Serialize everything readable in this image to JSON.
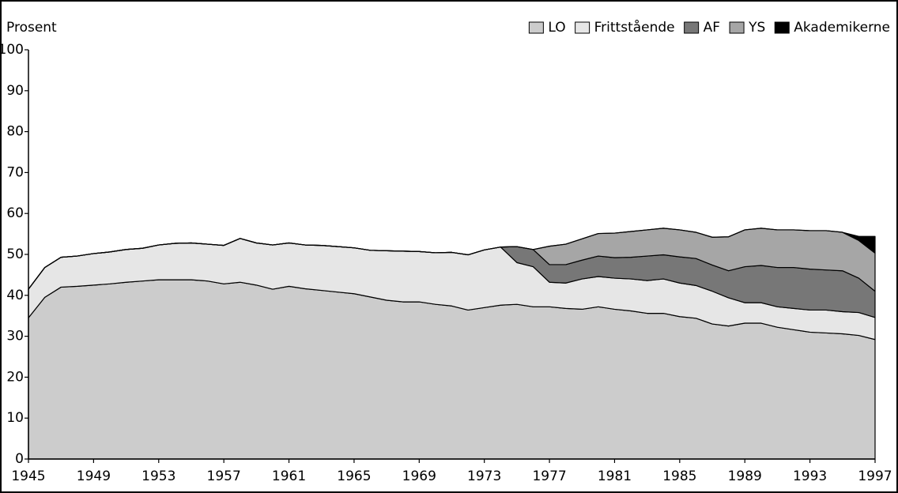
{
  "chart_data": {
    "type": "stacked-area",
    "y_label": "Prosent",
    "x": [
      1945,
      1946,
      1947,
      1948,
      1949,
      1950,
      1951,
      1952,
      1953,
      1954,
      1955,
      1956,
      1957,
      1958,
      1959,
      1960,
      1961,
      1962,
      1963,
      1964,
      1965,
      1966,
      1967,
      1968,
      1969,
      1970,
      1971,
      1972,
      1973,
      1974,
      1975,
      1976,
      1977,
      1978,
      1979,
      1980,
      1981,
      1982,
      1983,
      1984,
      1985,
      1986,
      1987,
      1988,
      1989,
      1990,
      1991,
      1992,
      1993,
      1994,
      1995,
      1996,
      1997
    ],
    "series": [
      {
        "name": "LO",
        "color": "#cccccc",
        "values": [
          34.5,
          39.5,
          42,
          42.2,
          42.5,
          42.8,
          43.2,
          43.5,
          43.8,
          43.8,
          43.8,
          43.5,
          42.8,
          43.2,
          42.5,
          41.5,
          42.2,
          41.6,
          41.2,
          40.8,
          40.4,
          39.6,
          38.8,
          38.4,
          38.4,
          37.8,
          37.4,
          36.4,
          37.0,
          37.6,
          37.8,
          37.2,
          37.2,
          36.8,
          36.6,
          37.2,
          36.6,
          36.2,
          35.6,
          35.6,
          34.8,
          34.4,
          33.0,
          32.5,
          33.2,
          33.2,
          32.2,
          31.6,
          31.0,
          30.8,
          30.6,
          30.2,
          29.2
        ]
      },
      {
        "name": "Frittstående",
        "color": "#e6e6e6",
        "values": [
          7.0,
          7.3,
          7.3,
          7.4,
          7.7,
          7.8,
          8.0,
          8.0,
          8.5,
          8.9,
          9.0,
          9.0,
          9.4,
          10.7,
          10.3,
          10.8,
          10.6,
          10.7,
          11.0,
          11.1,
          11.2,
          11.4,
          12.1,
          12.4,
          12.3,
          12.6,
          13.1,
          13.5,
          14.1,
          14.2,
          10.2,
          9.8,
          6.0,
          6.2,
          7.4,
          7.4,
          7.6,
          7.8,
          8.0,
          8.4,
          8.2,
          8.0,
          8.0,
          6.9,
          5.0,
          5.0,
          5.0,
          5.2,
          5.4,
          5.6,
          5.4,
          5.6,
          5.4
        ]
      },
      {
        "name": "AF",
        "color": "#777777",
        "values": [
          0,
          0,
          0,
          0,
          0,
          0,
          0,
          0,
          0,
          0,
          0,
          0,
          0,
          0,
          0,
          0,
          0,
          0,
          0,
          0,
          0,
          0,
          0,
          0,
          0,
          0,
          0,
          0,
          0,
          0,
          3.9,
          4.2,
          4.3,
          4.5,
          4.6,
          5.0,
          5.0,
          5.3,
          6.0,
          5.9,
          6.4,
          6.6,
          6.4,
          6.6,
          8.8,
          9.1,
          9.6,
          10.0,
          10.0,
          9.8,
          10.0,
          8.4,
          6.4
        ]
      },
      {
        "name": "YS",
        "color": "#a6a6a6",
        "values": [
          0,
          0,
          0,
          0,
          0,
          0,
          0,
          0,
          0,
          0,
          0,
          0,
          0,
          0,
          0,
          0,
          0,
          0,
          0,
          0,
          0,
          0,
          0,
          0,
          0,
          0,
          0,
          0,
          0,
          0,
          0,
          0,
          4.5,
          5.0,
          5.2,
          5.5,
          6.0,
          6.3,
          6.4,
          6.5,
          6.6,
          6.4,
          6.8,
          8.3,
          9.0,
          9.1,
          9.2,
          9.2,
          9.4,
          9.6,
          9.4,
          9.2,
          9.3
        ]
      },
      {
        "name": "Akademikerne",
        "color": "#000000",
        "values": [
          0,
          0,
          0,
          0,
          0,
          0,
          0,
          0,
          0,
          0,
          0,
          0,
          0,
          0,
          0,
          0,
          0,
          0,
          0,
          0,
          0,
          0,
          0,
          0,
          0,
          0,
          0,
          0,
          0,
          0,
          0,
          0,
          0,
          0,
          0,
          0,
          0,
          0,
          0,
          0,
          0,
          0,
          0,
          0,
          0,
          0,
          0,
          0,
          0,
          0,
          0,
          1.0,
          4.1
        ]
      }
    ],
    "xlim": [
      1945,
      1997
    ],
    "xticks": [
      1945,
      1949,
      1953,
      1957,
      1961,
      1965,
      1969,
      1973,
      1977,
      1981,
      1985,
      1989,
      1993,
      1997
    ],
    "ylim": [
      0,
      100
    ],
    "yticks": [
      0,
      10,
      20,
      30,
      40,
      50,
      60,
      70,
      80,
      90,
      100
    ],
    "grid": false,
    "legend": "top-right"
  }
}
